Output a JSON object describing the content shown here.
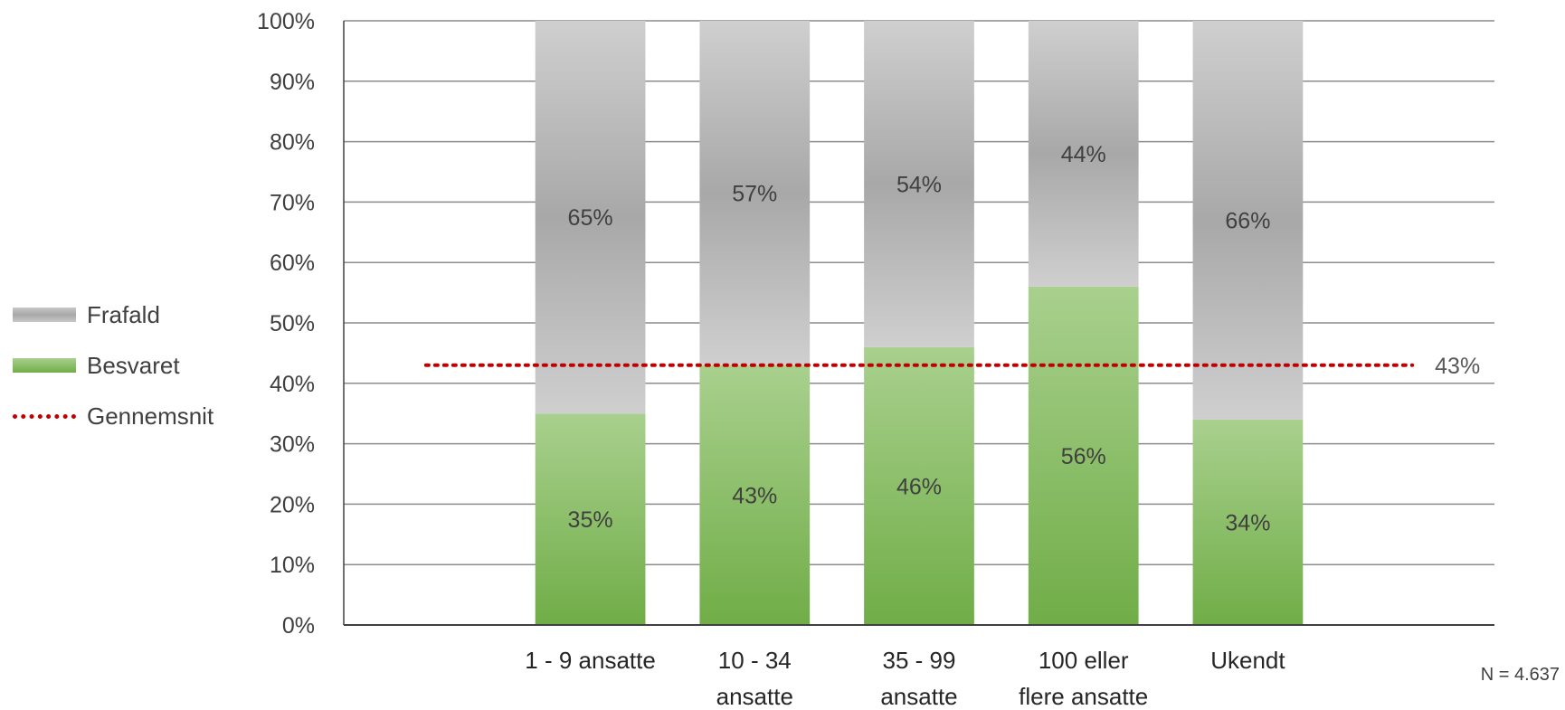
{
  "chart_data": {
    "type": "bar",
    "stacked": true,
    "categories": [
      [
        "1 - 9 ansatte"
      ],
      [
        "10 - 34",
        "ansatte"
      ],
      [
        "35 - 99",
        "ansatte"
      ],
      [
        "100 eller",
        "flere ansatte"
      ],
      [
        "Ukendt"
      ]
    ],
    "series": [
      {
        "name": "Besvaret",
        "values": [
          35,
          43,
          46,
          56,
          34
        ],
        "labels": [
          "35%",
          "43%",
          "46%",
          "56%",
          "34%"
        ],
        "color": "#70ad47"
      },
      {
        "name": "Frafald",
        "values": [
          65,
          57,
          54,
          44,
          66
        ],
        "labels": [
          "65%",
          "57%",
          "54%",
          "44%",
          "66%"
        ],
        "color": "#a6a6a6"
      }
    ],
    "reference_line": {
      "name": "Gennemsnit",
      "value": 43,
      "label": "43%",
      "color": "#c00000",
      "style": "dotted"
    },
    "ylim": [
      0,
      100
    ],
    "yticks": [
      "0%",
      "10%",
      "20%",
      "30%",
      "40%",
      "50%",
      "60%",
      "70%",
      "80%",
      "90%",
      "100%"
    ],
    "grid": true,
    "legend_position": "left"
  },
  "legend": {
    "items": [
      "Frafald",
      "Besvaret",
      "Gennemsnit"
    ]
  },
  "note": "N = 4.637"
}
